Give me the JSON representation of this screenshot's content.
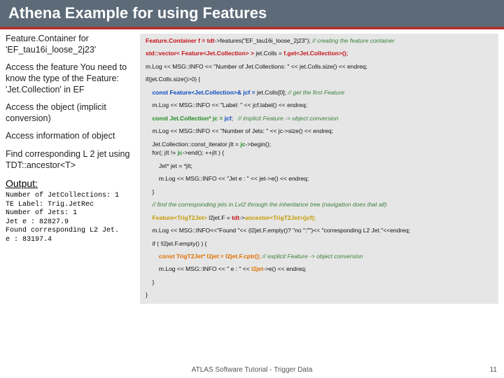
{
  "title": "Athena Example for using Features",
  "left": {
    "block1": "Feature.Container for 'EF_tau16i_loose_2j23'",
    "block2": "Access the feature You need to know the type of the Feature: 'Jet.Collection' in EF",
    "block3": "Access the object (implicit conversion)",
    "block4": "Access information of object",
    "block5": "Find corresponding L 2 jet using TDT::ancestor<T>",
    "output_heading": "Output:",
    "output_text": "Number of JetCollections: 1\nTE Label: Trig.JetRec\nNumber of Jets: 1\nJet e : 82827.9\nFound corresponding L2 Jet.\ne : 83197.4"
  },
  "code": {
    "l1a": "Feature.Container f = ",
    "l1b": "tdt",
    "l1c": "->features(\"EF_tau16i_loose_2j23\"); ",
    "l1d": "// creating the feature container",
    "l2a": "std::vector< Feature<Jet.Collection> >",
    "l2b": " jet.Colls = ",
    "l2c": "f.get<Jet.Collection>();",
    "l3": "m.Log << MSG::INFO << \"Number of Jet.Collections: \" << jet.Colls.size() << endreq;",
    "l4a": "if(jet.Colls.size()>0) {",
    "l5a": "    const Feature<Jet.Collection>& jcf = ",
    "l5b": "jet.Colls[0]; ",
    "l5c": "// get the first Feature",
    "l6": "    m.Log << MSG::INFO << \"Label: \" << jcf.label() << endreq;",
    "l7a": "    const Jet.Collection* jc = ",
    "l7b": "jcf",
    "l7c": ";   ",
    "l7d": "// implicit Feature -> object conversion",
    "l8": "    m.Log << MSG::INFO << \"Number of Jets: \" << jc->size() << endreq;",
    "l9a": "    Jet.Collection::const_iterator jIt = ",
    "l9b": "jc",
    "l9c": "->begin();",
    "l10a": "    for(; jIt != ",
    "l10b": "jc",
    "l10c": "->end(); ++jIt ) {",
    "l11": "        Jet* jet = *jIt;",
    "l12": "        m.Log << MSG::INFO << \"Jet e : \" << jet->e() << endreq;",
    "l13": "    }",
    "l14": "    // find the corresponding jets in Lvl2 through the inheritance tree (navigation does that all)",
    "l15a": "    Feature<TrigT2Jet>",
    "l15b": " l2jet.F = ",
    "l15c": "tdt",
    "l15d": "->",
    "l15e": "ancestor<TrigT2Jet>(jcf);",
    "l16": "    m.Log << MSG::INFO<<\"Found \"<< (l2jet.F.empty()? \"no \":\"\")<< \"corresponding L2 Jet.\"<<endreq;",
    "l17": "    if ( !l2jet.F.empty() ) {",
    "l18a": "        const TrigT2Jet* l2jet = l2jet.F.cptr();",
    "l18b": " // explicit Feature -> object conversion",
    "l19a": "        m.Log << MSG::INFO << \" e : \" << ",
    "l19b": "l2jet",
    "l19c": "->e() << endreq;",
    "l20": "    }",
    "l21": "}"
  },
  "footer": "ATLAS Software Tutorial - Trigger Data",
  "pagenum": "11",
  "colors": {
    "title_bg": "#5d6a78",
    "divider": "#b82e2e",
    "code_bg": "#e6e6e6"
  }
}
